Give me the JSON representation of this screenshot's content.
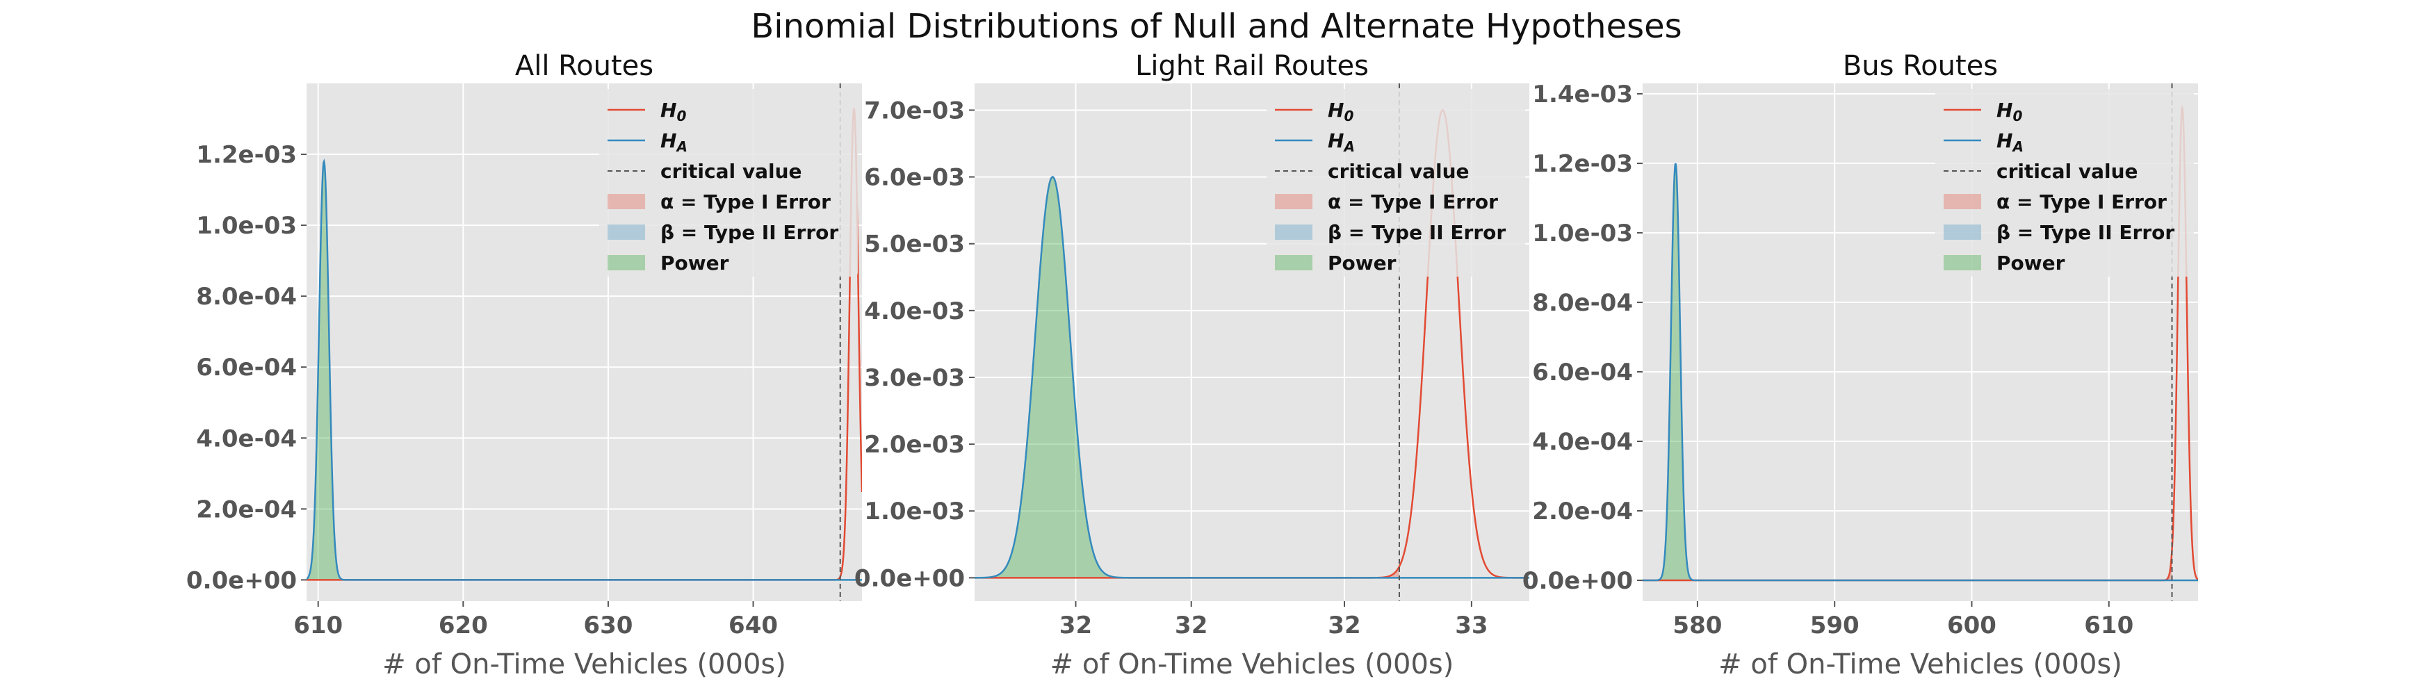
{
  "figure": {
    "title": "Binomial Distributions of Null and Alternate Hypotheses"
  },
  "colors": {
    "background": "#e5e5e5",
    "grid": "#ffffff",
    "h0": "#e24a33",
    "ha": "#348abd",
    "alpha_fill": "#e24a33",
    "beta_fill": "#348abd",
    "power_fill": "#4caf50",
    "critical": "#555555"
  },
  "legend": {
    "entries": [
      {
        "key": "h0",
        "main": "H",
        "sub": "0",
        "style": "line"
      },
      {
        "key": "ha",
        "main": "H",
        "sub": "A",
        "style": "line"
      },
      {
        "key": "crit",
        "main": "critical value",
        "sub": "",
        "style": "dash"
      },
      {
        "key": "alpha",
        "main": "α = Type I Error",
        "sub": "",
        "style": "patch"
      },
      {
        "key": "beta",
        "main": "β = Type II Error",
        "sub": "",
        "style": "patch"
      },
      {
        "key": "power",
        "main": "Power",
        "sub": "",
        "style": "patch"
      }
    ],
    "placement": "upper-right"
  },
  "chart_data": [
    {
      "type": "area",
      "title": "All Routes",
      "xlabel": "# of On-Time Vehicles (000s)",
      "ylabel": "",
      "grid": true,
      "xlim": [
        609.2,
        647.5
      ],
      "ylim": [
        -6e-05,
        0.0014
      ],
      "xticks": [
        610,
        620,
        630,
        640
      ],
      "xtick_labels": [
        "610",
        "620",
        "630",
        "640"
      ],
      "yticks": [
        0,
        0.0002,
        0.0004,
        0.0006,
        0.0008,
        0.001,
        0.0012
      ],
      "ytick_labels": [
        "0.0e+00",
        "2.0e-04",
        "4.0e-04",
        "6.0e-04",
        "8.0e-04",
        "1.0e-03",
        "1.2e-03"
      ],
      "critical_value": 646.0,
      "series": [
        {
          "name": "H_0",
          "mean": 646.95,
          "sd": 0.3,
          "peak": 0.00133
        },
        {
          "name": "H_A",
          "mean": 610.4,
          "sd": 0.34,
          "peak": 0.00118
        }
      ]
    },
    {
      "type": "area",
      "title": "Light Rail Routes",
      "xlabel": "# of On-Time Vehicles (000s)",
      "ylabel": "",
      "grid": true,
      "xlim": [
        31.2,
        33.12
      ],
      "ylim": [
        -0.00035,
        0.0074
      ],
      "xticks": [
        31.55,
        31.95,
        32.48,
        32.92
      ],
      "xtick_labels": [
        "32",
        "32",
        "32",
        "33"
      ],
      "yticks": [
        0,
        0.001,
        0.002,
        0.003,
        0.004,
        0.005,
        0.006,
        0.007
      ],
      "ytick_labels": [
        "0.0e+00",
        "1.0e-03",
        "2.0e-03",
        "3.0e-03",
        "4.0e-03",
        "5.0e-03",
        "6.0e-03",
        "7.0e-03"
      ],
      "critical_value": 32.67,
      "series": [
        {
          "name": "H_0",
          "mean": 32.82,
          "sd": 0.055,
          "peak": 0.007
        },
        {
          "name": "H_A",
          "mean": 31.47,
          "sd": 0.06,
          "peak": 0.006
        }
      ]
    },
    {
      "type": "area",
      "title": "Bus Routes",
      "xlabel": "# of On-Time Vehicles (000s)",
      "ylabel": "",
      "grid": true,
      "xlim": [
        576.0,
        616.5
      ],
      "ylim": [
        -6e-05,
        0.00143
      ],
      "xticks": [
        580,
        590,
        600,
        610
      ],
      "xtick_labels": [
        "580",
        "590",
        "600",
        "610"
      ],
      "yticks": [
        0,
        0.0002,
        0.0004,
        0.0006,
        0.0008,
        0.001,
        0.0012,
        0.0014
      ],
      "ytick_labels": [
        "0.0e+00",
        "2.0e-04",
        "4.0e-04",
        "6.0e-04",
        "8.0e-04",
        "1.0e-03",
        "1.2e-03",
        "1.4e-03"
      ],
      "critical_value": 614.6,
      "series": [
        {
          "name": "H_0",
          "mean": 615.35,
          "sd": 0.32,
          "peak": 0.00136
        },
        {
          "name": "H_A",
          "mean": 578.4,
          "sd": 0.33,
          "peak": 0.0012
        }
      ]
    }
  ]
}
